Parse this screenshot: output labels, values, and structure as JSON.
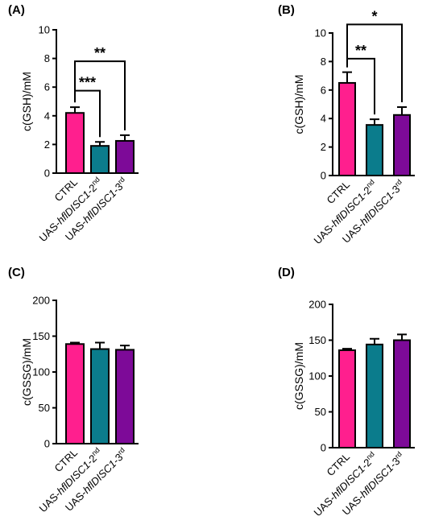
{
  "colors": {
    "ctrl": "#ff1f8e",
    "second": "#0b7c8c",
    "third": "#7d0a98",
    "axis": "#000000"
  },
  "chart_data": [
    {
      "panel": "(A)",
      "type": "bar",
      "categories": [
        {
          "plain": "CTRL"
        },
        {
          "pre": "UAS-",
          "ital": "hflDISC1",
          "post": "-2",
          "sup": "nd"
        },
        {
          "pre": "UAS-",
          "ital": "hflDISC1",
          "post": "-3",
          "sup": "rd"
        }
      ],
      "values": [
        4.2,
        1.9,
        2.25
      ],
      "errors": [
        0.4,
        0.28,
        0.4
      ],
      "ylabel": "c(GSH)/mM",
      "ylim": [
        0,
        10
      ],
      "yticks": [
        "0",
        "2",
        "4",
        "6",
        "8",
        "10"
      ],
      "significance": [
        {
          "from": 0,
          "to": 1,
          "label": "***",
          "level": 5.75
        },
        {
          "from": 0,
          "to": 2,
          "label": "**",
          "level": 7.8
        }
      ]
    },
    {
      "panel": "(B)",
      "type": "bar",
      "categories": [
        {
          "plain": "CTRL"
        },
        {
          "pre": "UAS-",
          "ital": "hflDISC1",
          "post": "-2",
          "sup": "nd"
        },
        {
          "pre": "UAS-",
          "ital": "hflDISC1",
          "post": "-3",
          "sup": "rd"
        }
      ],
      "values": [
        6.5,
        3.55,
        4.25
      ],
      "errors": [
        0.75,
        0.4,
        0.55
      ],
      "ylabel": "c(GSH)/mM",
      "ylim": [
        0,
        10
      ],
      "yticks": [
        "0",
        "2",
        "4",
        "6",
        "8",
        "10"
      ],
      "significance": [
        {
          "from": 0,
          "to": 1,
          "label": "**",
          "level": 8.2
        },
        {
          "from": 0,
          "to": 2,
          "label": "*",
          "level": 10.6
        }
      ]
    },
    {
      "panel": "(C)",
      "type": "bar",
      "categories": [
        {
          "plain": "CTRL"
        },
        {
          "pre": "UAS-",
          "ital": "hflDISC1",
          "post": "-2",
          "sup": "nd"
        },
        {
          "pre": "UAS-",
          "ital": "hflDISC1",
          "post": "-3",
          "sup": "rd"
        }
      ],
      "values": [
        139,
        132,
        131
      ],
      "errors": [
        2,
        9,
        6
      ],
      "ylabel": "c(GSSG)/mM",
      "ylim": [
        0,
        200
      ],
      "yticks": [
        "0",
        "50",
        "100",
        "150",
        "200"
      ],
      "significance": []
    },
    {
      "panel": "(D)",
      "type": "bar",
      "categories": [
        {
          "plain": "CTRL"
        },
        {
          "pre": "UAS-",
          "ital": "hflDISC1",
          "post": "-2",
          "sup": "nd"
        },
        {
          "pre": "UAS-",
          "ital": "hflDISC1",
          "post": "-3",
          "sup": "rd"
        }
      ],
      "values": [
        136,
        144,
        150
      ],
      "errors": [
        2,
        8,
        8
      ],
      "ylabel": "c(GSSG)/mM",
      "ylim": [
        0,
        200
      ],
      "yticks": [
        "0",
        "50",
        "100",
        "150",
        "200"
      ],
      "significance": []
    }
  ]
}
